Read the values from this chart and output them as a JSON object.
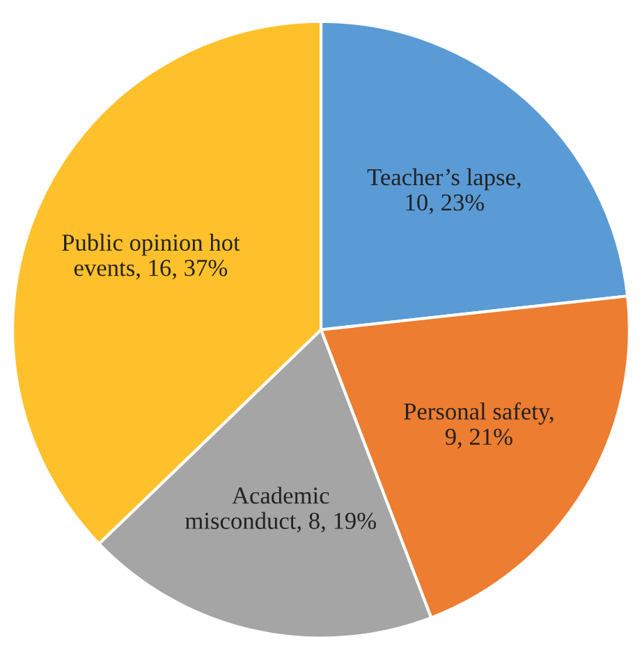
{
  "chart_data": {
    "type": "pie",
    "categories": [
      "Teacher’s lapse",
      "Personal safety",
      "Academic\nmisconduct",
      "Public opinion hot\nevents"
    ],
    "values": [
      10,
      9,
      8,
      16
    ],
    "value_labels": [
      ",\n10, 23%",
      ",\n9, 21%",
      ", 8, 19%",
      ", 16, 37%"
    ],
    "colors": [
      "#5b9bd5",
      "#ed7d31",
      "#a5a5a5",
      "#ffc12b"
    ]
  }
}
